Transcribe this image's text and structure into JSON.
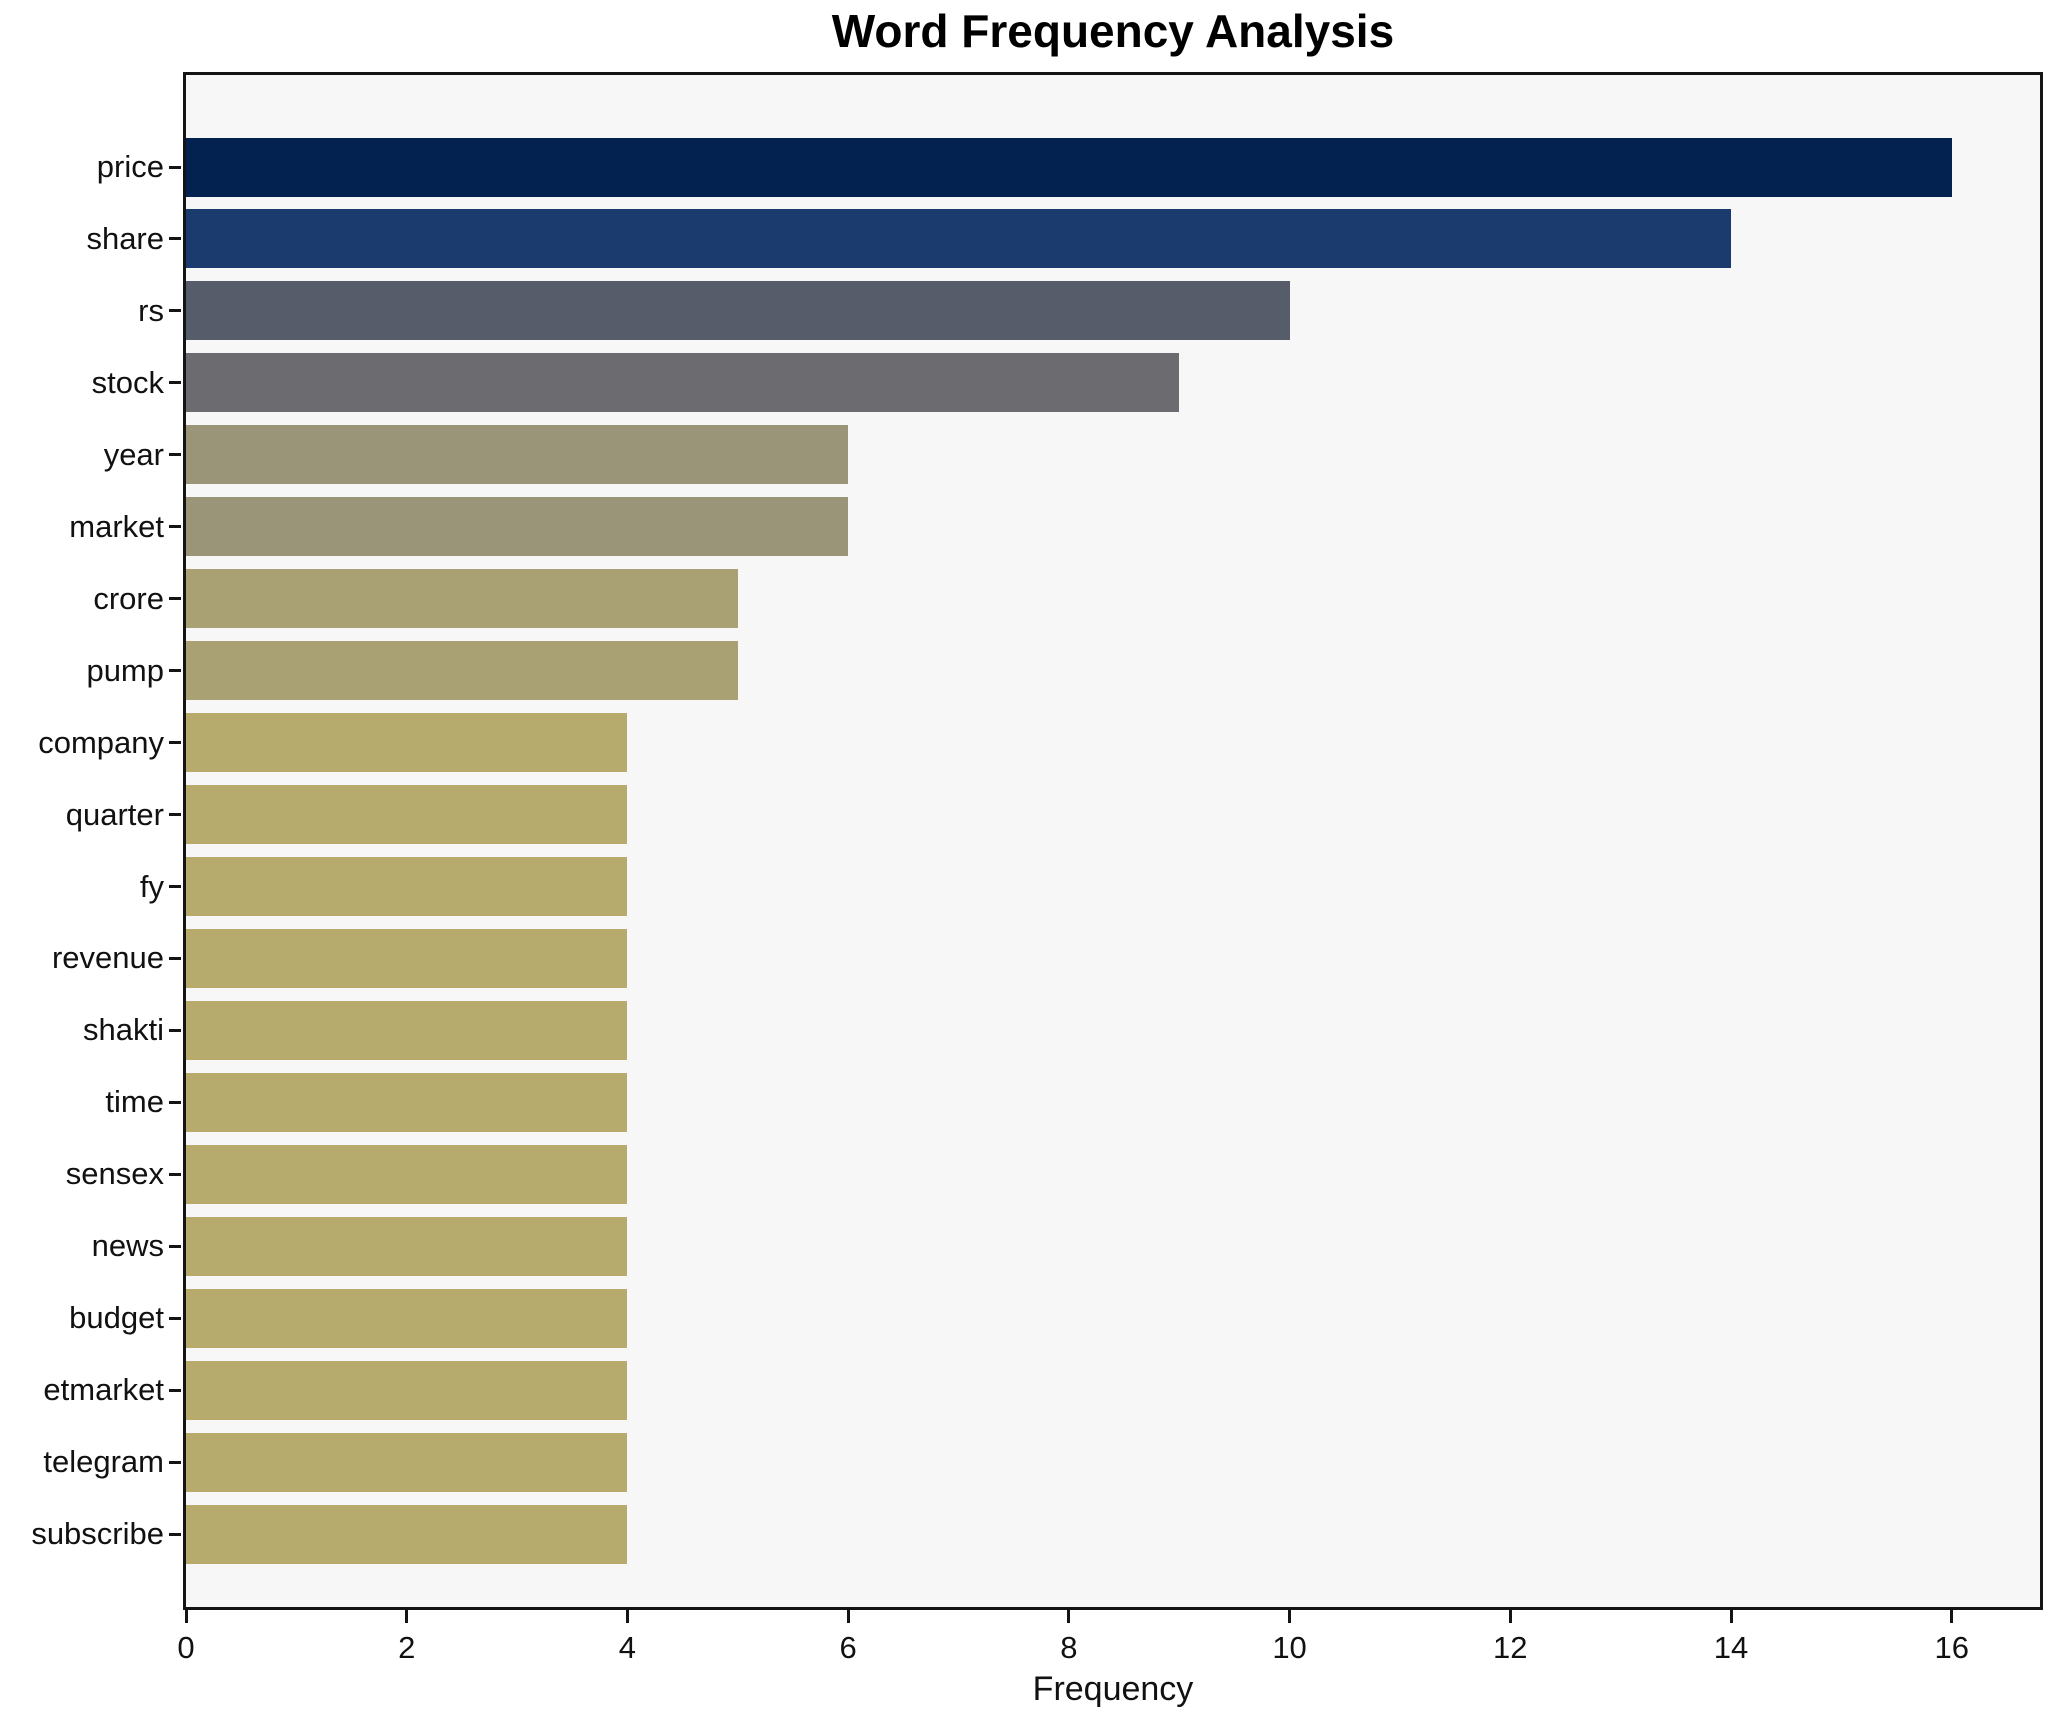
{
  "chart_data": {
    "type": "bar",
    "orientation": "horizontal",
    "title": "Word Frequency Analysis",
    "xlabel": "Frequency",
    "ylabel": "",
    "categories": [
      "price",
      "share",
      "rs",
      "stock",
      "year",
      "market",
      "crore",
      "pump",
      "company",
      "quarter",
      "fy",
      "revenue",
      "shakti",
      "time",
      "sensex",
      "news",
      "budget",
      "etmarket",
      "telegram",
      "subscribe"
    ],
    "values": [
      16,
      14,
      10,
      9,
      6,
      6,
      5,
      5,
      4,
      4,
      4,
      4,
      4,
      4,
      4,
      4,
      4,
      4,
      4,
      4
    ],
    "bar_colors": [
      "#03224f",
      "#1b3a6e",
      "#575c6b",
      "#6c6c70",
      "#9a9478",
      "#9a9478",
      "#a9a073",
      "#a9a073",
      "#b6ab6c",
      "#b6ab6c",
      "#b6ab6c",
      "#b6ab6c",
      "#b6ab6c",
      "#b6ab6c",
      "#b6ab6c",
      "#b6ab6c",
      "#b6ab6c",
      "#b6ab6c",
      "#b6ab6c",
      "#b6ab6c"
    ],
    "xlim": [
      0,
      16.8
    ],
    "xticks": [
      0,
      2,
      4,
      6,
      8,
      10,
      12,
      14,
      16
    ],
    "grid": false,
    "legend": null,
    "plot_background": "#f7f7f8",
    "figure_background": "#ffffff",
    "spine_color": "#141414"
  }
}
